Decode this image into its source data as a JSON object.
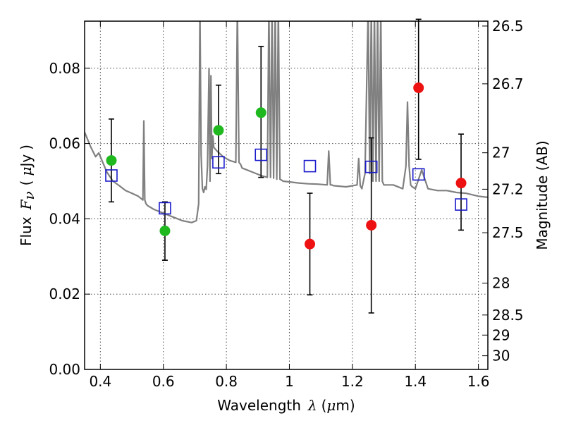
{
  "chart_data": {
    "type": "scatter",
    "title": "",
    "xlabel": "Wavelength",
    "xlabel_symbol": "λ",
    "xlabel_unit_open": "(",
    "xlabel_unit_mu": "μ",
    "xlabel_unit_rest": "m)",
    "ylabel_prefix": "Flux",
    "ylabel_symbol": "F",
    "ylabel_sub": "ν",
    "ylabel_unit_open": "(",
    "ylabel_unit_mu": "μ",
    "ylabel_unit_rest": "Jy",
    "ylabel_unit_close": ")",
    "ylabel_right": "Magnitude (AB)",
    "xlim": [
      0.35,
      1.63
    ],
    "ylim": [
      0.0,
      0.0925
    ],
    "x_ticks": [
      "0.4",
      "0.6",
      "0.8",
      "1",
      "1.2",
      "1.4",
      "1.6"
    ],
    "x_tick_values": [
      0.4,
      0.6,
      0.8,
      1.0,
      1.2,
      1.4,
      1.6
    ],
    "y_ticks": [
      "0.00",
      "0.02",
      "0.04",
      "0.06",
      "0.08"
    ],
    "y_tick_values": [
      0.0,
      0.02,
      0.04,
      0.06,
      0.08
    ],
    "right_ticks": [
      "26.5",
      "26.7",
      "27",
      "27.2",
      "27.5",
      "28",
      "28.5",
      "29",
      "30"
    ],
    "right_tick_values": [
      26.5,
      26.7,
      27.0,
      27.2,
      27.5,
      28.0,
      28.5,
      29.0,
      30.0
    ],
    "grid": true,
    "colors": {
      "model": "#808080",
      "green": "#1fb81f",
      "red": "#ee1111",
      "model_box": "#1a1acc",
      "errorbar": "#000000"
    },
    "series": [
      {
        "marker": "circle",
        "color": "green",
        "x": [
          0.435,
          0.605,
          0.775,
          0.91
        ],
        "y": [
          0.0555,
          0.0368,
          0.0635,
          0.0682
        ],
        "err_low": [
          0.0445,
          0.029,
          0.052,
          0.051
        ],
        "err_high": [
          0.0665,
          0.0445,
          0.0755,
          0.0858
        ]
      },
      {
        "marker": "circle",
        "color": "red",
        "x": [
          1.065,
          1.26,
          1.41,
          1.545
        ],
        "y": [
          0.0333,
          0.0383,
          0.0748,
          0.0495
        ],
        "err_low": [
          0.0198,
          0.015,
          0.0558,
          0.037
        ],
        "err_high": [
          0.0468,
          0.0615,
          0.093,
          0.0625
        ]
      },
      {
        "marker": "open-square",
        "color": "model_box",
        "x": [
          0.435,
          0.605,
          0.775,
          0.91,
          1.065,
          1.26,
          1.41,
          1.545
        ],
        "y": [
          0.0515,
          0.0428,
          0.055,
          0.057,
          0.054,
          0.0538,
          0.0518,
          0.0438
        ]
      },
      {
        "marker": "line",
        "color": "model",
        "x": [
          0.35,
          0.37,
          0.385,
          0.395,
          0.405,
          0.42,
          0.44,
          0.46,
          0.48,
          0.5,
          0.52,
          0.535,
          0.538,
          0.541,
          0.545,
          0.55,
          0.57,
          0.6,
          0.63,
          0.66,
          0.69,
          0.705,
          0.712,
          0.716,
          0.72,
          0.724,
          0.728,
          0.732,
          0.736,
          0.74,
          0.745,
          0.748,
          0.751,
          0.754,
          0.757,
          0.76,
          0.77,
          0.79,
          0.81,
          0.83,
          0.835,
          0.84,
          0.845,
          0.85,
          0.88,
          0.91,
          0.93,
          0.935,
          0.94,
          0.945,
          0.95,
          0.955,
          0.96,
          0.965,
          0.97,
          0.975,
          0.98,
          1.0,
          1.03,
          1.06,
          1.09,
          1.12,
          1.125,
          1.13,
          1.135,
          1.14,
          1.18,
          1.215,
          1.22,
          1.225,
          1.23,
          1.24,
          1.25,
          1.255,
          1.26,
          1.265,
          1.27,
          1.275,
          1.28,
          1.285,
          1.29,
          1.295,
          1.3,
          1.33,
          1.36,
          1.37,
          1.375,
          1.38,
          1.385,
          1.39,
          1.4,
          1.42,
          1.44,
          1.47,
          1.5,
          1.53,
          1.56,
          1.6,
          1.63
        ],
        "y": [
          0.063,
          0.059,
          0.0565,
          0.0575,
          0.0555,
          0.0525,
          0.05,
          0.0488,
          0.0475,
          0.0468,
          0.046,
          0.045,
          0.066,
          0.045,
          0.044,
          0.0435,
          0.0425,
          0.0415,
          0.0405,
          0.0395,
          0.039,
          0.0395,
          0.044,
          0.096,
          0.057,
          0.048,
          0.047,
          0.0485,
          0.0478,
          0.054,
          0.08,
          0.05,
          0.078,
          0.056,
          0.062,
          0.059,
          0.058,
          0.0565,
          0.0555,
          0.055,
          0.096,
          0.055,
          0.0545,
          0.0535,
          0.0525,
          0.0515,
          0.051,
          0.096,
          0.051,
          0.096,
          0.0508,
          0.096,
          0.0505,
          0.096,
          0.0505,
          0.0503,
          0.05,
          0.0498,
          0.0495,
          0.0493,
          0.0492,
          0.049,
          0.058,
          0.049,
          0.049,
          0.0488,
          0.0485,
          0.049,
          0.056,
          0.0488,
          0.048,
          0.052,
          0.096,
          0.052,
          0.096,
          0.05,
          0.096,
          0.05,
          0.096,
          0.05,
          0.096,
          0.05,
          0.049,
          0.049,
          0.048,
          0.054,
          0.071,
          0.054,
          0.049,
          0.0485,
          0.048,
          0.053,
          0.048,
          0.0475,
          0.0475,
          0.047,
          0.0468,
          0.046,
          0.0457
        ]
      }
    ]
  }
}
